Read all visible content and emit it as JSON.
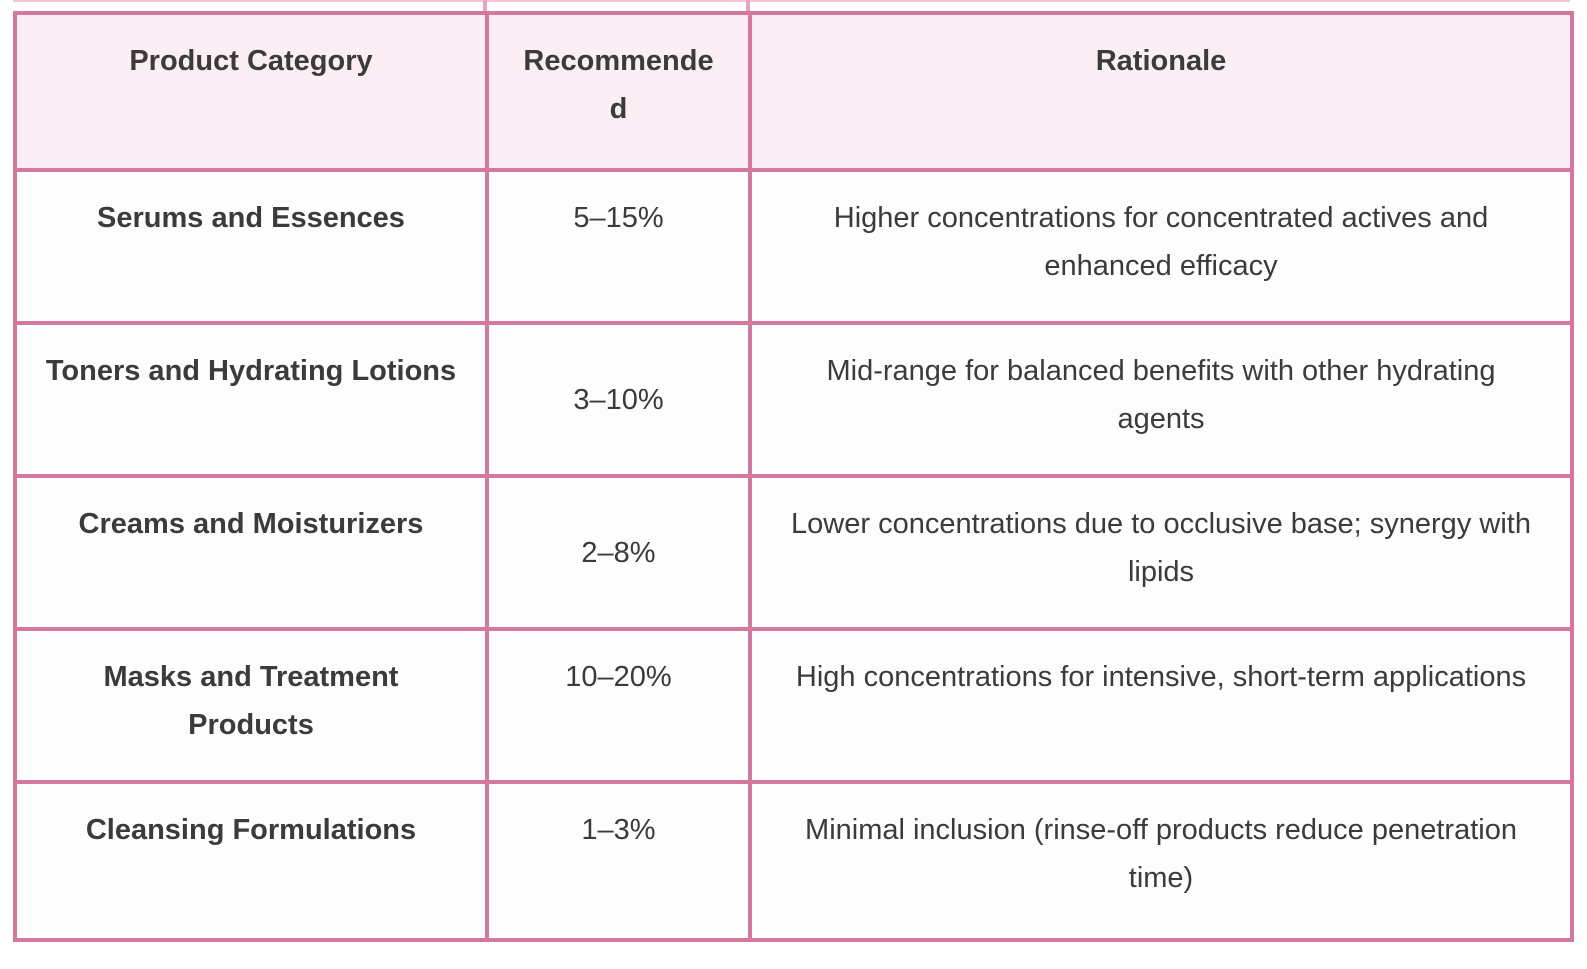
{
  "colors": {
    "border_pink": "#d5789f",
    "header_background": "#fbeef4",
    "text": "#3b3b3b",
    "remnant_pink": "#f2c6d8"
  },
  "table": {
    "columns": [
      {
        "label": "Product Category"
      },
      {
        "label": "Recommende\nd"
      },
      {
        "label": "Rationale"
      }
    ],
    "rows": [
      {
        "category": "Serums and Essences",
        "recommended": "5–15%",
        "rationale": "Higher concentrations for concentrated actives and enhanced efficacy"
      },
      {
        "category": "Toners and Hydrating Lotions",
        "recommended": "3–10%",
        "rationale": "Mid-range for balanced benefits with other hydrating agents"
      },
      {
        "category": "Creams and Moisturizers",
        "recommended": "2–8%",
        "rationale": "Lower concentrations due to occlusive base; synergy with lipids"
      },
      {
        "category": "Masks and Treatment Products",
        "recommended": "10–20%",
        "rationale": "High concentrations for intensive, short-term applications"
      },
      {
        "category": "Cleansing Formulations",
        "recommended": "1–3%",
        "rationale": "Minimal inclusion (rinse-off products reduce penetration time)"
      }
    ]
  }
}
